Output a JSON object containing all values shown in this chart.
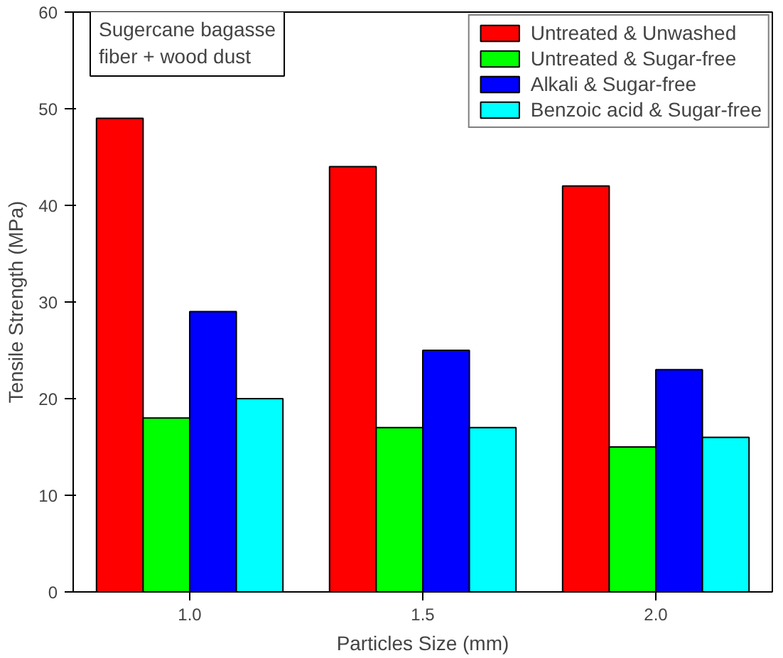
{
  "chart_data": {
    "type": "bar",
    "xlabel": "Particles Size (mm)",
    "ylabel": "Tensile Strength (MPa)",
    "categories": [
      "1.0",
      "1.5",
      "2.0"
    ],
    "series": [
      {
        "name": "Untreated & Unwashed",
        "color": "#ff0000",
        "values": [
          49,
          44,
          42
        ]
      },
      {
        "name": "Untreated & Sugar-free",
        "color": "#00ff00",
        "values": [
          18,
          17,
          15
        ]
      },
      {
        "name": "Alkali & Sugar-free",
        "color": "#0000ff",
        "values": [
          29,
          25,
          23
        ]
      },
      {
        "name": "Benzoic acid & Sugar-free",
        "color": "#00ffff",
        "values": [
          20,
          17,
          16
        ]
      }
    ],
    "ylim": [
      0,
      60
    ],
    "yticks": [
      0,
      10,
      20,
      30,
      40,
      50,
      60
    ],
    "annotations": [
      "Sugercane bagasse fiber + wood dust"
    ],
    "legend": "top right",
    "grid": false
  }
}
